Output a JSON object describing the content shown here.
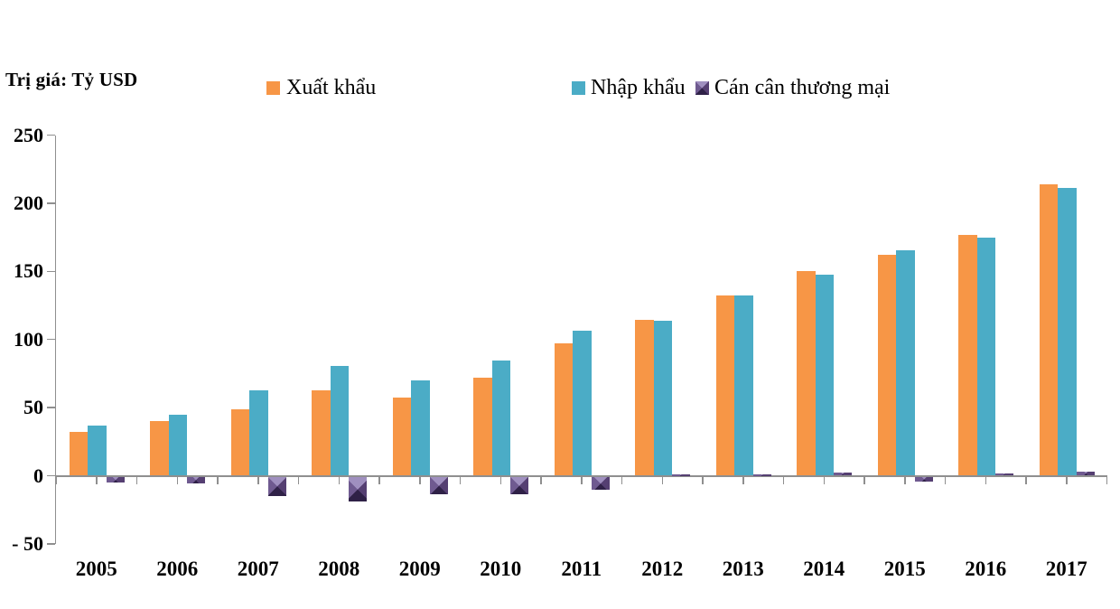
{
  "chart_data": {
    "type": "bar",
    "title": "",
    "ylabel": "Trị giá: Tỷ USD",
    "xlabel": "",
    "categories": [
      "2005",
      "2006",
      "2007",
      "2008",
      "2009",
      "2010",
      "2011",
      "2012",
      "2013",
      "2014",
      "2015",
      "2016",
      "2017"
    ],
    "series": [
      {
        "name": "Xuất khẩu",
        "color": "#F79646",
        "values": [
          32.4,
          39.8,
          48.6,
          62.7,
          57.1,
          72.2,
          96.9,
          114.5,
          132.0,
          150.2,
          162.0,
          176.6,
          214.0
        ]
      },
      {
        "name": "Nhập khẩu",
        "color": "#4BACC6",
        "values": [
          36.8,
          44.9,
          62.8,
          80.7,
          69.9,
          84.8,
          106.7,
          113.8,
          132.0,
          147.8,
          165.6,
          174.8,
          211.1
        ]
      },
      {
        "name": "Cán cân thương mại",
        "color": "#5F497A",
        "values": [
          -4.3,
          -5.1,
          -14.2,
          -18.0,
          -12.9,
          -12.6,
          -9.8,
          0.7,
          0.0,
          2.4,
          -3.6,
          1.8,
          2.9
        ]
      }
    ],
    "ylim": [
      -50,
      250
    ],
    "yticks": [
      250,
      200,
      150,
      100,
      50,
      0,
      -50
    ],
    "ytick_labels": [
      "250",
      "200",
      "150",
      "100",
      "50",
      "0",
      "- 50"
    ],
    "legend_position": "top",
    "grid": false,
    "axis_color": "#8f8f8f",
    "background_color": "#ffffff"
  }
}
